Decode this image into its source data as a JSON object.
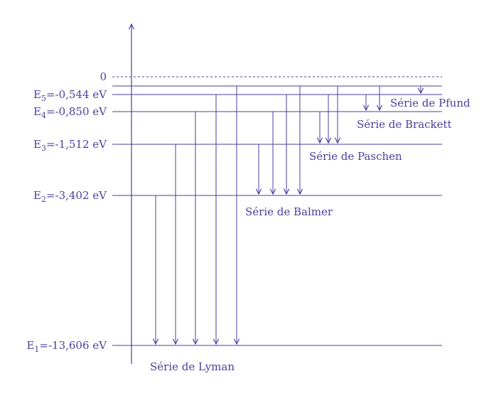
{
  "colors": {
    "ink": "#4a3fa0",
    "background": "#ffffff"
  },
  "zero_label": "0",
  "levels": [
    {
      "prefix": "E",
      "sub": "1",
      "text": "=-13,606 eV",
      "energy": -13.606
    },
    {
      "prefix": "E",
      "sub": "2",
      "text": "=-3,402 eV",
      "energy": -3.402
    },
    {
      "prefix": "E",
      "sub": "3",
      "text": "=-1,512 eV",
      "energy": -1.512
    },
    {
      "prefix": "E",
      "sub": "4",
      "text": "=-0,850 eV",
      "energy": -0.85
    },
    {
      "prefix": "E",
      "sub": "5",
      "text": "=-0,544 eV",
      "energy": -0.544
    }
  ],
  "series": [
    {
      "name": "Série de Lyman"
    },
    {
      "name": "Série de Balmer"
    },
    {
      "name": "Série de Paschen"
    },
    {
      "name": "Série de Brackett"
    },
    {
      "name": "Série de Pfund"
    }
  ]
}
